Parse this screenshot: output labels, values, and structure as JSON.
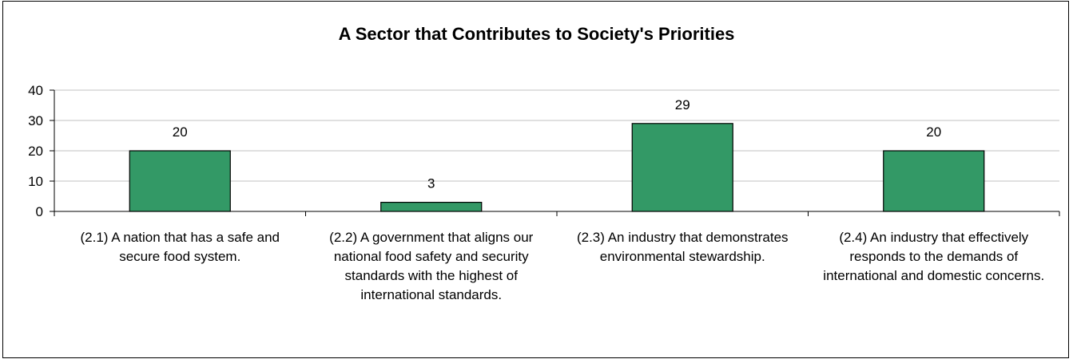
{
  "chart_data": {
    "type": "bar",
    "title": "A Sector that Contributes to Society's Priorities",
    "categories": [
      "(2.1) A nation that has a safe and secure food system.",
      "(2.2) A government that aligns our national food safety and security standards with the highest of international standards.",
      "(2.3) An industry that demonstrates environmental stewardship.",
      "(2.4) An industry that effectively responds to the demands of international and domestic concerns."
    ],
    "values": [
      20,
      3,
      29,
      20
    ],
    "data_labels": [
      "20",
      "3",
      "29",
      "20"
    ],
    "y_ticks": [
      "0",
      "10",
      "20",
      "30",
      "40"
    ],
    "ylim": [
      0,
      40
    ],
    "xlabel": "",
    "ylabel": "",
    "grid": true,
    "legend": "none",
    "bar_color": "#339966",
    "grid_color": "#c0c0c0"
  }
}
